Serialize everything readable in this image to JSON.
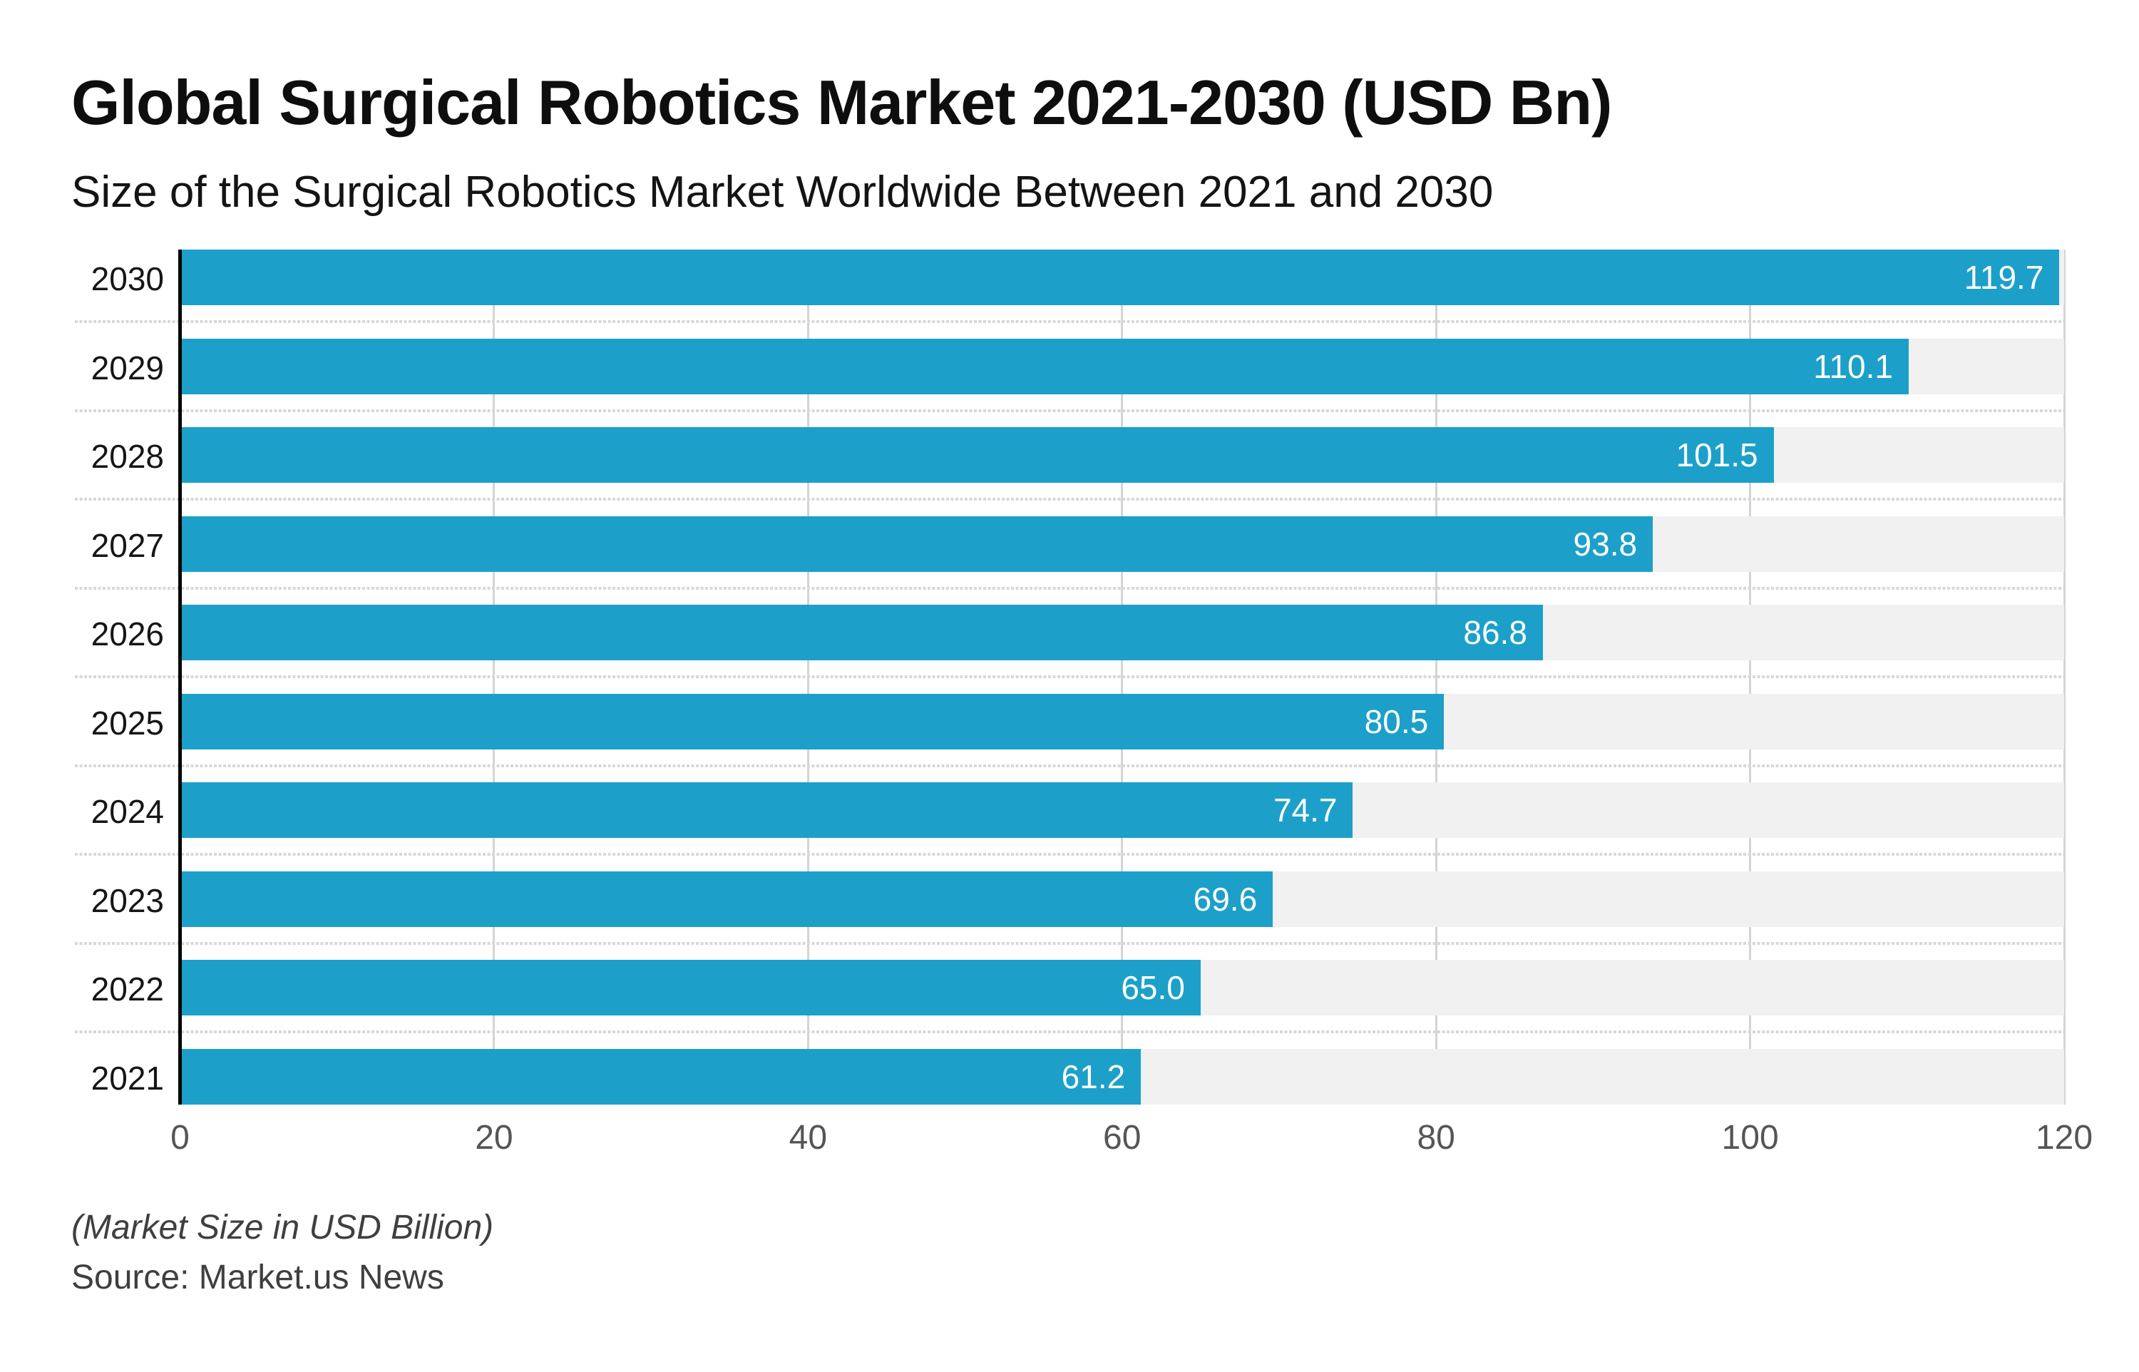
{
  "header": {
    "title": "Global Surgical Robotics Market 2021-2030 (USD Bn)",
    "subtitle": "Size of the Surgical Robotics Market Worldwide Between 2021 and 2030"
  },
  "chart_data": {
    "type": "bar",
    "orientation": "horizontal",
    "title": "Global Surgical Robotics Market 2021-2030 (USD Bn)",
    "subtitle": "Size of the Surgical Robotics Market Worldwide Between 2021 and 2030",
    "categories": [
      "2030",
      "2029",
      "2028",
      "2027",
      "2026",
      "2025",
      "2024",
      "2023",
      "2022",
      "2021"
    ],
    "values": [
      119.7,
      110.1,
      101.5,
      93.8,
      86.8,
      80.5,
      74.7,
      69.6,
      65.0,
      61.2
    ],
    "value_labels": [
      "119.7",
      "110.1",
      "101.5",
      "93.8",
      "86.8",
      "80.5",
      "74.7",
      "69.6",
      "65.0",
      "61.2"
    ],
    "xlabel": "",
    "ylabel": "",
    "xlim": [
      0,
      120
    ],
    "x_ticks": [
      0,
      20,
      40,
      60,
      80,
      100,
      120
    ],
    "x_tick_labels": [
      "0",
      "20",
      "40",
      "60",
      "80",
      "100",
      "120"
    ],
    "grid": "vertical-solid-plus-dotted-row-separators",
    "legend": "none",
    "bar_color": "#1ca0c9",
    "track_color": "#f1f1f1",
    "gridline_color": "#d4d4d4",
    "separator_color": "#d8d8d8",
    "value_label_color": "#ffffff",
    "axis_color": "#000000"
  },
  "footer": {
    "note": "(Market Size in USD Billion)",
    "source": "Source: Market.us News"
  }
}
